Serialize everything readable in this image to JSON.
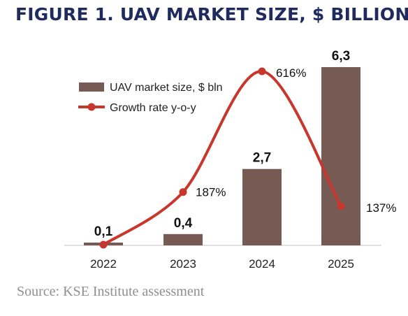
{
  "title": "FIGURE 1. UAV MARKET SIZE, $ BILLION",
  "source": "Source: KSE Institute assessment",
  "colors": {
    "title": "#1f2b5e",
    "bar": "#765b55",
    "line": "#c8372d",
    "axis": "#cfcfcf",
    "source": "#8f8f8f"
  },
  "chart_data": {
    "type": "bar+line",
    "categories": [
      "2022",
      "2023",
      "2024",
      "2025"
    ],
    "series": [
      {
        "name": "UAV market size, $ bln",
        "type": "bar",
        "values": [
          0.1,
          0.4,
          2.7,
          6.3
        ],
        "labels": [
          "0,1",
          "0,4",
          "2,7",
          "6,3"
        ]
      },
      {
        "name": "Growth rate y-o-y",
        "type": "line",
        "values": [
          0,
          187,
          616,
          137
        ],
        "labels": [
          "",
          "187%",
          "616%",
          "137%"
        ]
      }
    ],
    "bar_ylim": [
      0,
      6.3
    ],
    "line_ylim": [
      0,
      616
    ],
    "legend_position": "top-left",
    "grid": false
  }
}
